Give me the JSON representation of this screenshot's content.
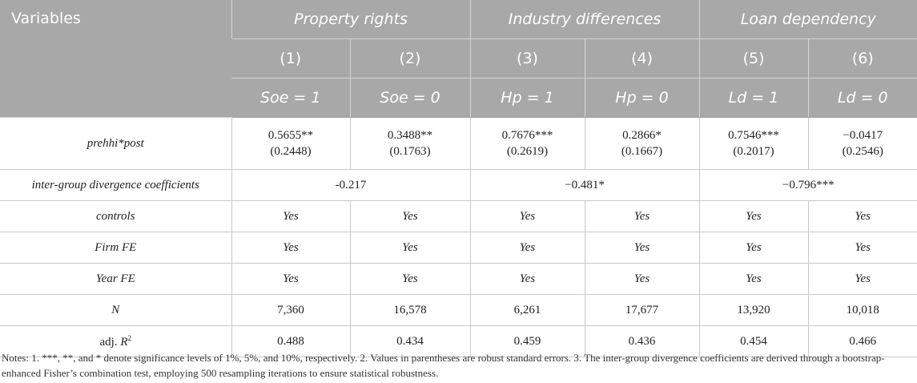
{
  "header": {
    "variables": "Variables",
    "groups": [
      "Property rights",
      "Industry differences",
      "Loan dependency"
    ],
    "model_numbers": [
      "(1)",
      "(2)",
      "(3)",
      "(4)",
      "(5)",
      "(6)"
    ],
    "conditions": [
      "Soe = 1",
      "Soe = 0",
      "Hp = 1",
      "Hp = 0",
      "Ld = 1",
      "Ld = 0"
    ]
  },
  "rows": {
    "prehhi": {
      "label": "prehhi*post",
      "coefs": [
        "0.5655**",
        "0.3488**",
        "0.7676***",
        "0.2866*",
        "0.7546***",
        "−0.0417"
      ],
      "ses": [
        "(0.2448)",
        "(0.1763)",
        "(0.2619)",
        "(0.1667)",
        "(0.2017)",
        "(0.2546)"
      ]
    },
    "divergence": {
      "label": "inter-group divergence coefficients",
      "values": [
        "-0.217",
        "−0.481*",
        "−0.796***"
      ]
    },
    "controls": {
      "label": "controls",
      "values": [
        "Yes",
        "Yes",
        "Yes",
        "Yes",
        "Yes",
        "Yes"
      ]
    },
    "firm_fe": {
      "label": "Firm FE",
      "values": [
        "Yes",
        "Yes",
        "Yes",
        "Yes",
        "Yes",
        "Yes"
      ]
    },
    "year_fe": {
      "label": "Year FE",
      "values": [
        "Yes",
        "Yes",
        "Yes",
        "Yes",
        "Yes",
        "Yes"
      ]
    },
    "n": {
      "label": "N",
      "values": [
        "7,360",
        "16,578",
        "6,261",
        "17,677",
        "13,920",
        "10,018"
      ]
    },
    "adjr2": {
      "label_prefix": "adj. ",
      "label_var": "R",
      "label_sup": "2",
      "values": [
        "0.488",
        "0.434",
        "0.459",
        "0.436",
        "0.454",
        "0.466"
      ]
    }
  },
  "notes": "Notes: 1. ***, **, and * denote significance levels of 1%, 5%, and 10%, respectively. 2. Values in parentheses are robust standard errors. 3. The inter-group divergence coefficients are derived through a bootstrap-enhanced Fisher’s combination test, employing 500 resampling iterations to ensure statistical robustness."
}
